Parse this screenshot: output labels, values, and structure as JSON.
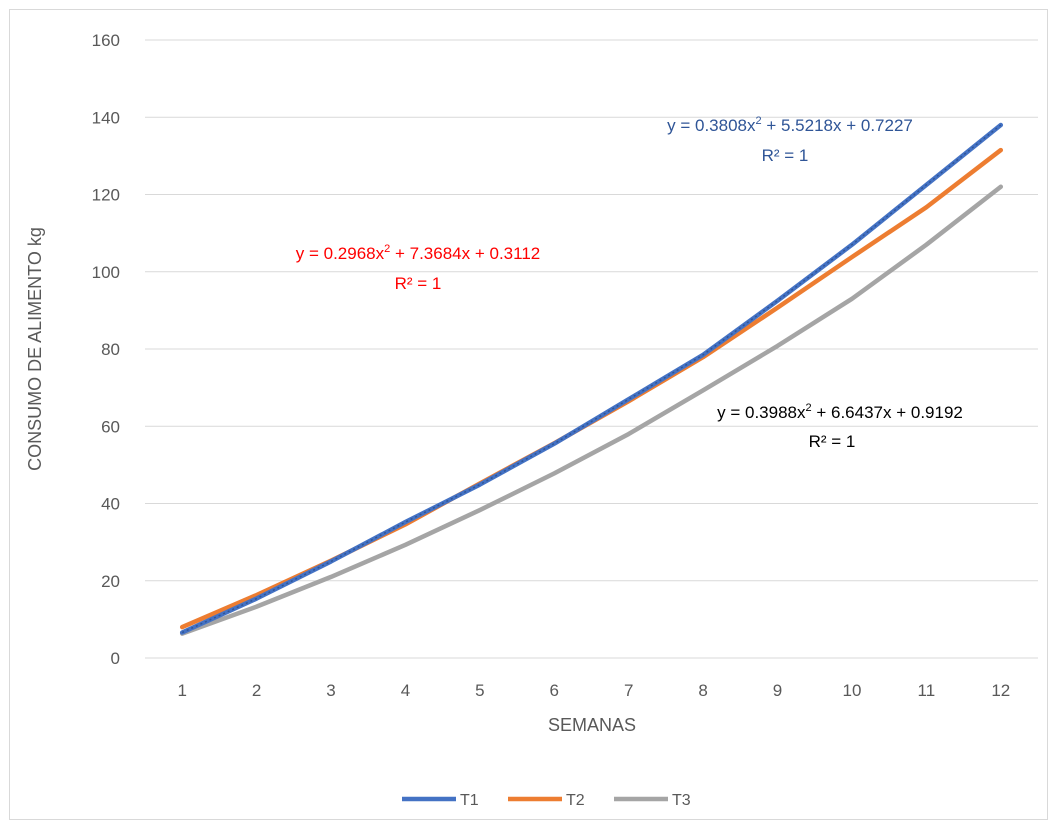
{
  "chart_data": {
    "type": "line",
    "xlabel": "SEMANAS",
    "ylabel": "CONSUMO DE ALIMENTO kg",
    "ylim": [
      0,
      160
    ],
    "yticks": [
      "0",
      "20",
      "40",
      "60",
      "80",
      "100",
      "120",
      "140",
      "160"
    ],
    "categories": [
      "1",
      "2",
      "3",
      "4",
      "5",
      "6",
      "7",
      "8",
      "9",
      "10",
      "11",
      "12"
    ],
    "grid": "horizontal",
    "legend_position": "bottom",
    "series": [
      {
        "name": "T1",
        "color": "#4472C4",
        "values": [
          6.6,
          15.4,
          25.0,
          35.2,
          44.9,
          55.5,
          67.0,
          78.5,
          92.5,
          107.0,
          122.5,
          138.0
        ]
      },
      {
        "name": "T2",
        "color": "#ED7D31",
        "values": [
          8.0,
          16.3,
          25.2,
          34.6,
          45.2,
          55.6,
          66.5,
          77.9,
          90.7,
          103.8,
          116.7,
          131.5
        ]
      },
      {
        "name": "T3",
        "color": "#A5A5A5",
        "values": [
          6.3,
          13.3,
          21.0,
          29.3,
          38.3,
          47.8,
          58.0,
          69.3,
          80.8,
          93.0,
          107.0,
          122.0
        ]
      }
    ],
    "annotations": [
      {
        "equation_lead": "y = 0.3808x",
        "equation_exp": "2",
        "equation_tail": " + 5.5218x + 0.7227",
        "r2": "R² = 1",
        "color": "#2F5597"
      },
      {
        "equation_lead": "y = 0.2968x",
        "equation_exp": "2",
        "equation_tail": " + 7.3684x + 0.3112",
        "r2": "R² = 1",
        "color": "#FF0000"
      },
      {
        "equation_lead": "y = 0.3988x",
        "equation_exp": "2",
        "equation_tail": " + 6.6437x + 0.9192",
        "r2": "R² = 1",
        "color": "#000000"
      }
    ]
  }
}
